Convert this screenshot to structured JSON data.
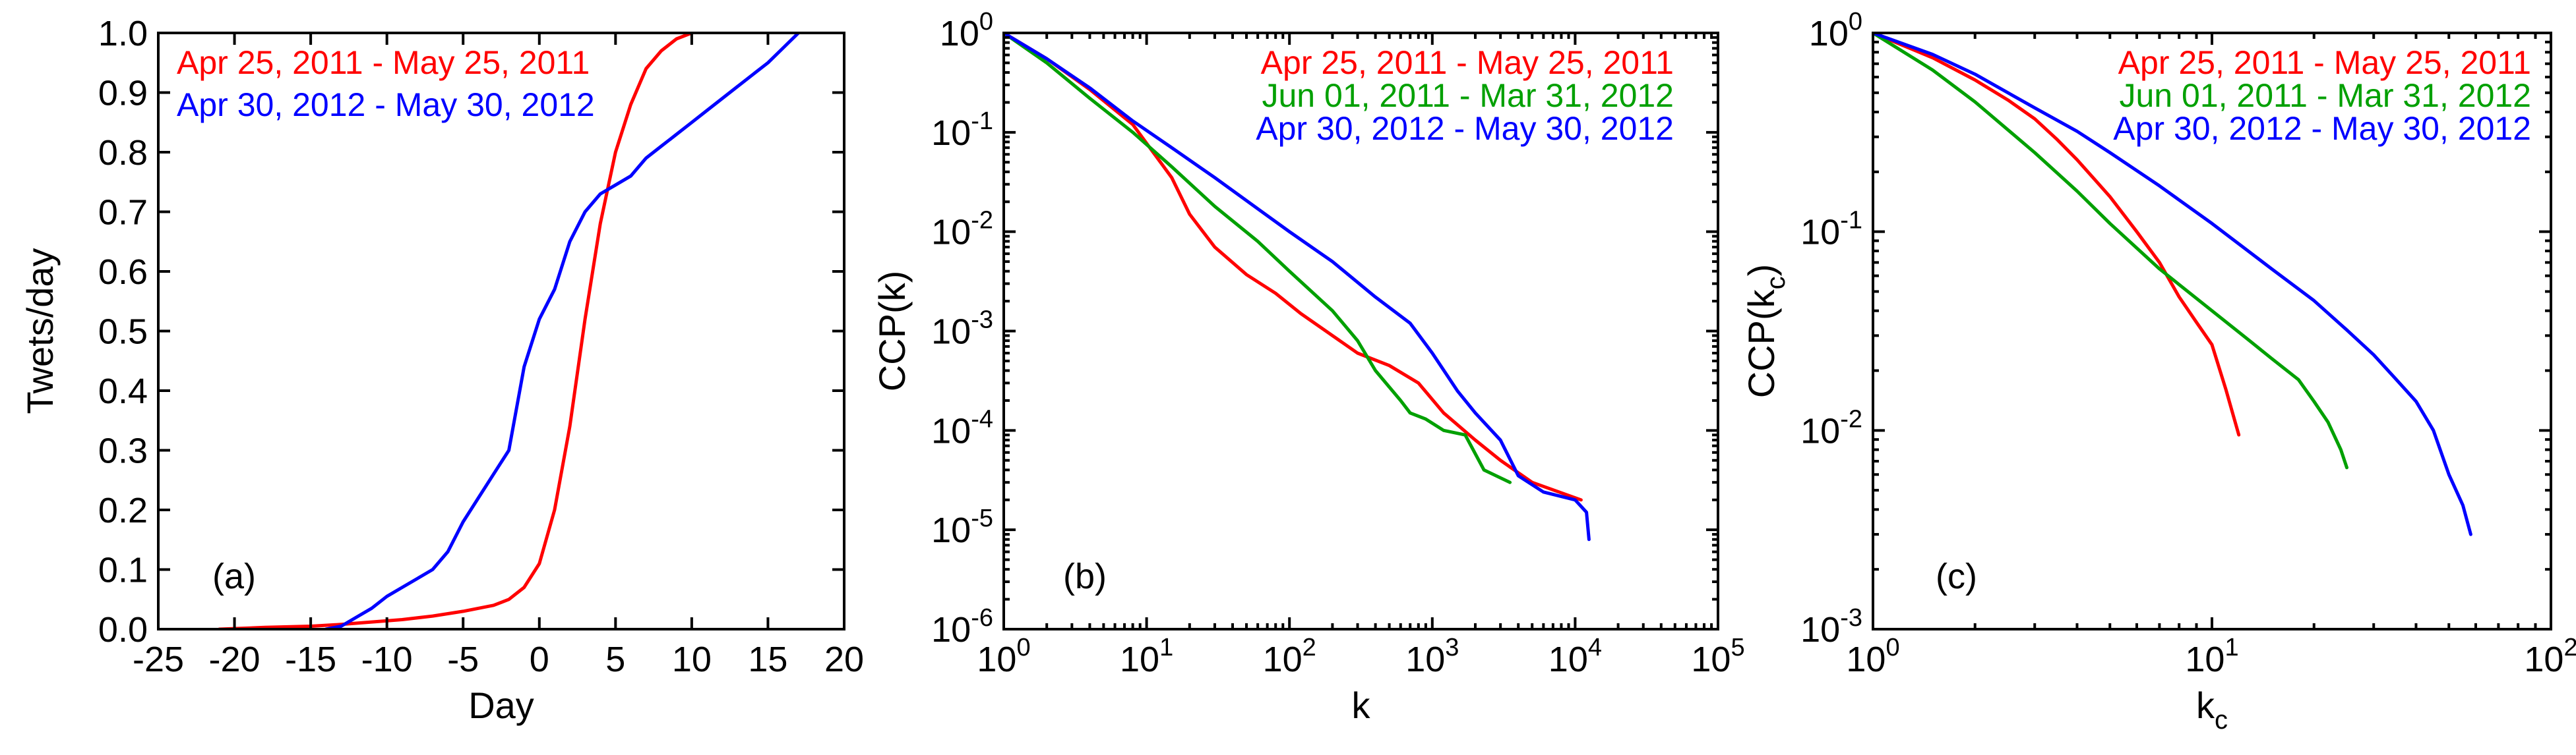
{
  "chart_data": [
    {
      "id": "a",
      "type": "line",
      "panel_label": "(a)",
      "xlabel": "Day",
      "ylabel": "Twets/day",
      "xscale": "linear",
      "yscale": "linear",
      "xlim": [
        -25,
        20
      ],
      "ylim": [
        0,
        1
      ],
      "x_ticks": [
        -25,
        -20,
        -15,
        -10,
        -5,
        0,
        5,
        10,
        15,
        20
      ],
      "y_ticks": [
        0,
        0.1,
        0.2,
        0.3,
        0.4,
        0.5,
        0.6,
        0.7,
        0.8,
        0.9,
        1.0
      ],
      "y_tick_labels": [
        "0.0",
        "0.1",
        "0.2",
        "0.3",
        "0.4",
        "0.5",
        "0.6",
        "0.7",
        "0.8",
        "0.9",
        "1.0"
      ],
      "legend_position": "top-left",
      "series": [
        {
          "name": "Apr 25, 2011 - May 25, 2011",
          "color": "#ff0000",
          "x": [
            -21,
            -18,
            -15,
            -13,
            -11,
            -9,
            -7,
            -5,
            -3,
            -2,
            -1,
            0,
            1,
            2,
            3,
            4,
            5,
            6,
            7,
            8,
            9,
            10
          ],
          "y": [
            0.0,
            0.003,
            0.005,
            0.008,
            0.012,
            0.016,
            0.022,
            0.03,
            0.04,
            0.05,
            0.07,
            0.11,
            0.2,
            0.34,
            0.52,
            0.68,
            0.8,
            0.88,
            0.94,
            0.97,
            0.99,
            1.0
          ]
        },
        {
          "name": "Apr 30, 2012 - May 30, 2012",
          "color": "#0000ff",
          "x": [
            -14,
            -13,
            -12,
            -11,
            -10,
            -9,
            -8,
            -7,
            -6,
            -5,
            -4,
            -3,
            -2,
            -1,
            0,
            1,
            2,
            3,
            4,
            5,
            6,
            7,
            8,
            9,
            10,
            11,
            12,
            13,
            14,
            15,
            16,
            17
          ],
          "y": [
            0.0,
            0.005,
            0.02,
            0.035,
            0.055,
            0.07,
            0.085,
            0.1,
            0.13,
            0.18,
            0.22,
            0.26,
            0.3,
            0.44,
            0.52,
            0.57,
            0.65,
            0.7,
            0.73,
            0.745,
            0.76,
            0.79,
            0.81,
            0.83,
            0.85,
            0.87,
            0.89,
            0.91,
            0.93,
            0.95,
            0.975,
            1.0
          ]
        }
      ]
    },
    {
      "id": "b",
      "type": "line",
      "panel_label": "(b)",
      "xlabel": "k",
      "ylabel": "CCP(k)",
      "xscale": "log",
      "yscale": "log",
      "xlim": [
        1,
        100000
      ],
      "ylim": [
        1e-06,
        1
      ],
      "x_ticks": [
        1,
        10,
        100,
        1000,
        10000,
        100000
      ],
      "x_tick_exponents": [
        "0",
        "1",
        "2",
        "3",
        "4",
        "5"
      ],
      "y_ticks": [
        1e-06,
        1e-05,
        0.0001,
        0.001,
        0.01,
        0.1,
        1
      ],
      "y_tick_exponents": [
        "-6",
        "-5",
        "-4",
        "-3",
        "-2",
        "-1",
        "0"
      ],
      "tick_base": "10",
      "legend_position": "top-right",
      "series": [
        {
          "name": "Apr 25, 2011 - May 25, 2011",
          "color": "#ff0000",
          "x": [
            1,
            2,
            4,
            8,
            15,
            20,
            30,
            50,
            80,
            120,
            200,
            300,
            500,
            800,
            1200,
            2000,
            3000,
            5000,
            11000
          ],
          "y": [
            1,
            0.55,
            0.27,
            0.12,
            0.035,
            0.015,
            0.007,
            0.0037,
            0.0024,
            0.0015,
            0.0009,
            0.0006,
            0.00045,
            0.0003,
            0.00015,
            8e-05,
            5e-05,
            3e-05,
            2e-05
          ]
        },
        {
          "name": "Jun 01, 2011 - Mar 31, 2012",
          "color": "#00a000",
          "x": [
            1,
            2,
            4,
            8,
            15,
            30,
            60,
            100,
            200,
            300,
            400,
            600,
            700,
            900,
            1200,
            1700,
            2300,
            3500
          ],
          "y": [
            1,
            0.5,
            0.22,
            0.1,
            0.045,
            0.018,
            0.008,
            0.004,
            0.0016,
            0.0008,
            0.0004,
            0.0002,
            0.00015,
            0.00013,
            0.0001,
            9e-05,
            4e-05,
            3e-05
          ]
        },
        {
          "name": "Apr 30, 2012 - May 30, 2012",
          "color": "#0000ff",
          "x": [
            1,
            2,
            4,
            8,
            15,
            30,
            60,
            100,
            200,
            400,
            700,
            1000,
            1500,
            2000,
            3000,
            4000,
            6000,
            10000,
            12000,
            12500
          ],
          "y": [
            1,
            0.55,
            0.28,
            0.13,
            0.07,
            0.035,
            0.017,
            0.01,
            0.005,
            0.0022,
            0.0012,
            0.0006,
            0.00025,
            0.00015,
            8e-05,
            3.5e-05,
            2.4e-05,
            2e-05,
            1.5e-05,
            8e-06
          ]
        }
      ]
    },
    {
      "id": "c",
      "type": "line",
      "panel_label": "(c)",
      "xlabel": "k",
      "xlabel_sub": "c",
      "ylabel": "CCP(k",
      "ylabel_sub": "c",
      "ylabel_tail": ")",
      "xscale": "log",
      "yscale": "log",
      "xlim": [
        1,
        100
      ],
      "ylim": [
        0.001,
        1
      ],
      "x_ticks": [
        1,
        10,
        100
      ],
      "x_tick_exponents": [
        "0",
        "1",
        "2"
      ],
      "y_ticks": [
        0.001,
        0.01,
        0.1,
        1
      ],
      "y_tick_exponents": [
        "-3",
        "-2",
        "-1",
        "0"
      ],
      "tick_base": "10",
      "legend_position": "top-right",
      "series": [
        {
          "name": "Apr 25, 2011 - May 25, 2011",
          "color": "#ff0000",
          "x": [
            1,
            1.5,
            2,
            2.5,
            3,
            3.5,
            4,
            5,
            6,
            7,
            8,
            9,
            10,
            11,
            12
          ],
          "y": [
            1,
            0.75,
            0.58,
            0.46,
            0.37,
            0.29,
            0.23,
            0.15,
            0.1,
            0.07,
            0.047,
            0.035,
            0.027,
            0.016,
            0.0095
          ]
        },
        {
          "name": "Jun 01, 2011 - Mar 31, 2012",
          "color": "#00a000",
          "x": [
            1,
            1.5,
            2,
            3,
            4,
            5,
            7,
            10,
            13,
            15,
            18,
            20,
            22,
            24,
            25
          ],
          "y": [
            1,
            0.65,
            0.45,
            0.25,
            0.16,
            0.11,
            0.065,
            0.04,
            0.028,
            0.023,
            0.018,
            0.014,
            0.011,
            0.008,
            0.0065
          ]
        },
        {
          "name": "Apr 30, 2012 - May 30, 2012",
          "color": "#0000ff",
          "x": [
            1,
            1.5,
            2,
            3,
            4,
            5,
            7,
            10,
            15,
            20,
            25,
            30,
            35,
            40,
            45,
            50,
            55,
            58
          ],
          "y": [
            1,
            0.78,
            0.62,
            0.42,
            0.32,
            0.25,
            0.17,
            0.11,
            0.065,
            0.045,
            0.032,
            0.024,
            0.018,
            0.014,
            0.01,
            0.006,
            0.0042,
            0.003
          ]
        }
      ]
    }
  ]
}
